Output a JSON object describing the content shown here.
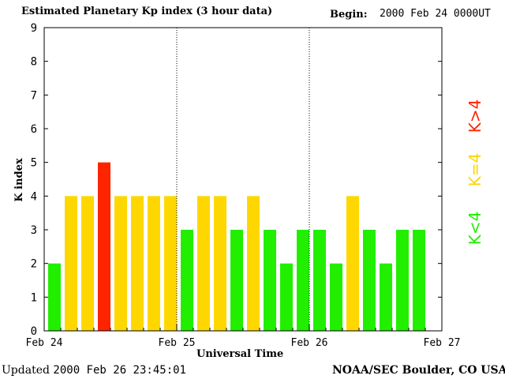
{
  "header": {
    "title": "Estimated Planetary Kp index (3 hour data)",
    "begin_label": "Begin:",
    "begin_value": "2000 Feb 24 0000UT"
  },
  "footer": {
    "updated_label": "Updated",
    "updated_value": "2000 Feb 26 23:45:01",
    "source": "NOAA/SEC Boulder, CO USA"
  },
  "legend": [
    {
      "label": "K<4",
      "color": "#22ee00"
    },
    {
      "label": "K=4",
      "color": "#ffd700"
    },
    {
      "label": "K>4",
      "color": "#ff2400"
    }
  ],
  "chart_data": {
    "type": "bar",
    "title": "Estimated Planetary Kp index (3 hour data)",
    "xlabel": "Universal Time",
    "ylabel": "K index",
    "ylim": [
      0,
      9
    ],
    "yticks": [
      0,
      1,
      2,
      3,
      4,
      5,
      6,
      7,
      8,
      9
    ],
    "xtick_labels": [
      "Feb 24",
      "Feb 25",
      "Feb 26",
      "Feb 27"
    ],
    "day_dividers": [
      "Feb 25",
      "Feb 26"
    ],
    "intervals_per_day": 8,
    "days": 3,
    "values": [
      2,
      4,
      4,
      5,
      4,
      4,
      4,
      4,
      3,
      4,
      4,
      3,
      4,
      3,
      2,
      3,
      3,
      2,
      4,
      3,
      2,
      3,
      3
    ],
    "colors": {
      "low": "#22ee00",
      "equal": "#ffd700",
      "high": "#ff2400"
    },
    "grid": false
  }
}
